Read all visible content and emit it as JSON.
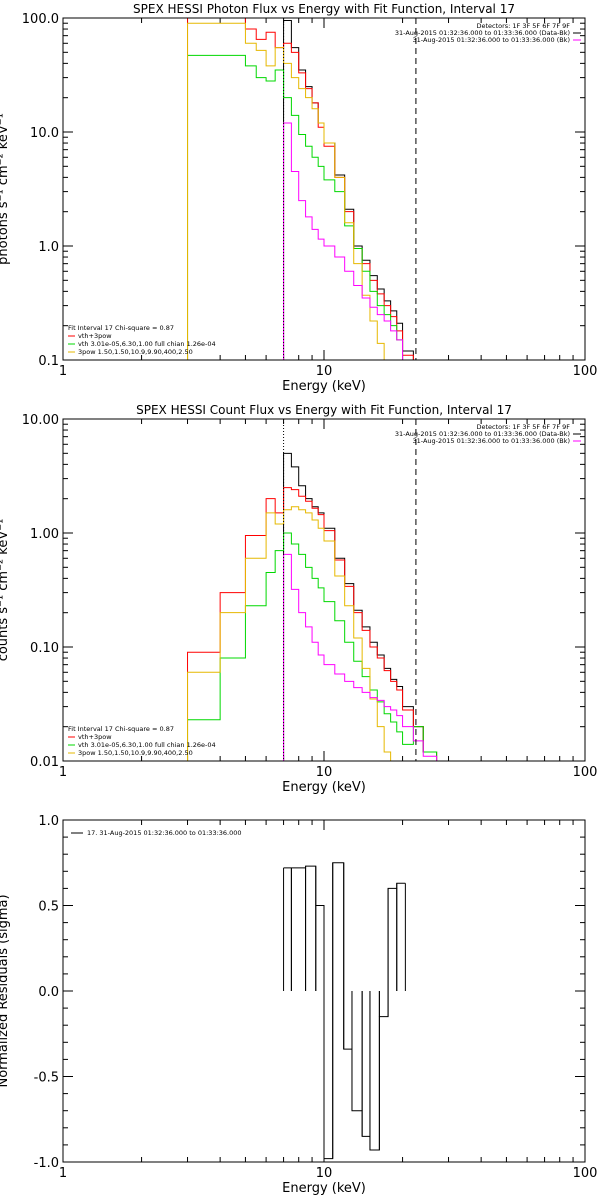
{
  "chart_data": [
    {
      "type": "line",
      "title": "SPEX HESSI Photon Flux vs Energy with Fit Function, Interval 17",
      "xlabel": "Energy (keV)",
      "ylabel": "photons s⁻¹ cm⁻² keV⁻¹",
      "xscale": "log",
      "yscale": "log",
      "xlim": [
        1,
        100
      ],
      "ylim": [
        0.1,
        100
      ],
      "xticks": [
        "1",
        "10",
        "100"
      ],
      "yticks": [
        "0.1",
        "1.0",
        "10.0",
        "100.0"
      ],
      "info_lines": [
        "Detectors: 1F 3F 5F 6F 7F 9F",
        "31-Aug-2015 01:32:36.000 to 01:33:36.000 (Data-Bk)",
        "31-Aug-2015 01:32:36.000 to 01:33:36.000 (Bk)"
      ],
      "fit_legend": [
        "Fit Interval 17    Chi-square = 0.87",
        "vth+3pow",
        "vth 3.01e-05,6.30,1.00   full chian 1.26e-04",
        "3pow 1.50,1.50,10.9,9.90,400,2.50"
      ],
      "vlines": [
        {
          "x": 7.0,
          "style": "dotted"
        },
        {
          "x": 22.5,
          "style": "dashed"
        }
      ],
      "edges": [
        3.0,
        3.5,
        4.0,
        4.5,
        5.0,
        5.5,
        6.0,
        6.5,
        7.0,
        7.5,
        8.0,
        8.5,
        9.0,
        9.5,
        10.0,
        11.0,
        12.0,
        13.0,
        14.0,
        15.0,
        16.0,
        17.0,
        18.0,
        19.0,
        20.0,
        22.0,
        24.0,
        27.0
      ],
      "series": [
        {
          "color": "#000000",
          "values": [
            null,
            null,
            null,
            null,
            null,
            null,
            null,
            null,
            95,
            55,
            35,
            25,
            18,
            12,
            8,
            4.2,
            2.1,
            1.0,
            0.75,
            0.55,
            0.42,
            0.33,
            0.27,
            0.21,
            0.12,
            0.1,
            0.1
          ]
        },
        {
          "color": "#ff0000",
          "values": [
            100,
            100,
            100,
            100,
            80,
            65,
            75,
            55,
            60,
            50,
            33,
            24,
            18,
            11,
            7.5,
            4.0,
            2.0,
            0.95,
            0.7,
            0.5,
            0.38,
            0.3,
            0.24,
            0.18,
            0.11,
            0.1,
            0.1
          ]
        },
        {
          "color": "#00d800",
          "values": [
            47,
            47,
            47,
            47,
            38,
            30,
            28,
            35,
            20,
            14,
            9.5,
            7.5,
            6.0,
            5.0,
            3.8,
            3.0,
            1.5,
            0.95,
            0.6,
            0.4,
            0.3,
            0.25,
            0.2,
            0.15,
            0.1,
            0.1,
            0.1
          ]
        },
        {
          "color": "#e6b800",
          "values": [
            90,
            90,
            90,
            90,
            60,
            52,
            38,
            55,
            40,
            30,
            24,
            20,
            16,
            12,
            8,
            4.0,
            1.6,
            0.7,
            0.37,
            0.22,
            0.14,
            0.1,
            0.1,
            0.1,
            0.1,
            0.1,
            0.1
          ]
        },
        {
          "color": "#ff00ff",
          "values": [
            null,
            null,
            null,
            null,
            null,
            null,
            null,
            null,
            12,
            4.5,
            2.5,
            1.8,
            1.4,
            1.15,
            1.0,
            0.8,
            0.6,
            0.45,
            0.35,
            0.29,
            0.25,
            0.22,
            0.18,
            0.15,
            0.1,
            0.1,
            0.1
          ]
        }
      ]
    },
    {
      "type": "line",
      "title": "SPEX HESSI Count Flux vs Energy with Fit Function, Interval 17",
      "xlabel": "Energy (keV)",
      "ylabel": "counts s⁻¹ cm⁻² keV⁻¹",
      "xscale": "log",
      "yscale": "log",
      "xlim": [
        1,
        100
      ],
      "ylim": [
        0.01,
        10
      ],
      "xticks": [
        "1",
        "10",
        "100"
      ],
      "yticks": [
        "0.01",
        "0.10",
        "1.00",
        "10.00"
      ],
      "info_lines": [
        "Detectors: 1F 3F 5F 6F 7F 9F",
        "31-Aug-2015 01:32:36.000 to 01:33:36.000 (Data-Bk)",
        "31-Aug-2015 01:32:36.000 to 01:33:36.000 (Bk)"
      ],
      "fit_legend": [
        "Fit Interval 17    Chi-square = 0.87",
        "vth+3pow",
        "vth 3.01e-05,6.30,1.00   full chian 1.26e-04",
        "3pow 1.50,1.50,10.9,9.90,400,2.50"
      ],
      "vlines": [
        {
          "x": 7.0,
          "style": "dotted"
        },
        {
          "x": 22.5,
          "style": "dashed"
        }
      ],
      "edges": [
        3.0,
        3.5,
        4.0,
        4.5,
        5.0,
        5.5,
        6.0,
        6.5,
        7.0,
        7.5,
        8.0,
        8.5,
        9.0,
        9.5,
        10.0,
        11.0,
        12.0,
        13.0,
        14.0,
        15.0,
        16.0,
        17.0,
        18.0,
        19.0,
        20.0,
        22.0,
        24.0,
        27.0,
        30.0
      ],
      "series": [
        {
          "color": "#000000",
          "values": [
            null,
            null,
            null,
            null,
            null,
            null,
            null,
            null,
            5.0,
            3.8,
            2.6,
            2.0,
            1.7,
            1.5,
            1.1,
            0.6,
            0.36,
            0.21,
            0.15,
            0.11,
            0.085,
            0.065,
            0.052,
            0.045,
            0.03,
            0.02,
            0.012,
            0.01
          ]
        },
        {
          "color": "#ff0000",
          "values": [
            0.09,
            0.09,
            0.3,
            0.3,
            0.95,
            0.95,
            2.0,
            1.5,
            2.5,
            2.4,
            2.1,
            1.9,
            1.65,
            1.45,
            1.05,
            0.58,
            0.34,
            0.2,
            0.14,
            0.1,
            0.08,
            0.062,
            0.05,
            0.042,
            0.028,
            0.02,
            0.012,
            0.01
          ]
        },
        {
          "color": "#00d800",
          "values": [
            0.023,
            0.023,
            0.08,
            0.08,
            0.23,
            0.23,
            0.45,
            0.7,
            1.0,
            0.8,
            0.65,
            0.5,
            0.4,
            0.33,
            0.25,
            0.17,
            0.11,
            0.075,
            0.055,
            0.042,
            0.033,
            0.026,
            0.022,
            0.018,
            0.014,
            0.02,
            0.012,
            0.01
          ]
        },
        {
          "color": "#e6b800",
          "values": [
            0.06,
            0.06,
            0.2,
            0.2,
            0.6,
            0.6,
            1.5,
            1.2,
            1.6,
            1.7,
            1.6,
            1.5,
            1.3,
            1.1,
            0.85,
            0.42,
            0.23,
            0.12,
            0.065,
            0.035,
            0.02,
            0.012,
            0.01,
            0.01,
            0.01,
            0.01,
            0.01,
            0.01
          ]
        },
        {
          "color": "#ff00ff",
          "values": [
            null,
            null,
            null,
            null,
            null,
            null,
            null,
            null,
            0.65,
            0.32,
            0.2,
            0.15,
            0.11,
            0.085,
            0.07,
            0.058,
            0.05,
            0.044,
            0.04,
            0.036,
            0.034,
            0.03,
            0.028,
            0.025,
            0.02,
            0.015,
            0.011,
            0.01
          ]
        }
      ]
    },
    {
      "type": "line",
      "title": "",
      "xlabel": "Energy (keV)",
      "ylabel": "Normalized Residuals (sigma)",
      "xscale": "log",
      "yscale": "linear",
      "xlim": [
        1,
        100
      ],
      "ylim": [
        -1.0,
        1.0
      ],
      "xticks": [
        "1",
        "10",
        "100"
      ],
      "yticks": [
        "-1.0",
        "-0.5",
        "0.0",
        "0.5",
        "1.0"
      ],
      "legend": [
        "17. 31-Aug-2015 01:32:36.000 to 01:33:36.000"
      ],
      "edges": [
        7.0,
        7.5,
        8.5,
        9.3,
        10.0,
        10.8,
        11.9,
        12.8,
        14.0,
        15.0,
        16.3,
        17.6,
        19.0,
        20.5,
        22.5
      ],
      "series": [
        {
          "color": "#000000",
          "values": [
            0.72,
            0.72,
            0.73,
            0.5,
            -0.98,
            0.75,
            -0.34,
            -0.7,
            -0.85,
            -0.93,
            -0.15,
            0.6,
            0.63,
            null
          ]
        }
      ]
    }
  ]
}
